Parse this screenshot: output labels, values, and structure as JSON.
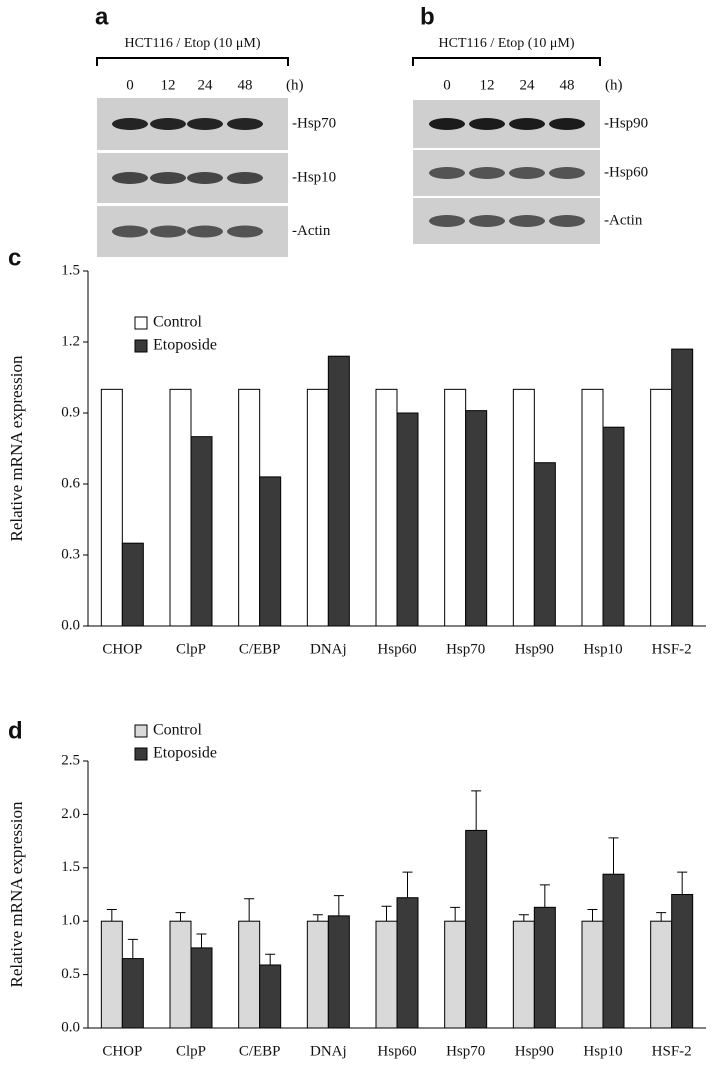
{
  "blots": [
    {
      "letter": "a",
      "condition": "HCT116 / Etop (10 μM)",
      "timepoints": [
        "0",
        "12",
        "24",
        "48"
      ],
      "unit": "(h)",
      "bands": [
        "-Hsp70",
        "-Hsp10",
        "-Actin"
      ]
    },
    {
      "letter": "b",
      "condition": "HCT116 / Etop (10 μM)",
      "timepoints": [
        "0",
        "12",
        "24",
        "48"
      ],
      "unit": "(h)",
      "bands": [
        "-Hsp90",
        "-Hsp60",
        "-Actin"
      ]
    }
  ],
  "chart_data": [
    {
      "type": "bar",
      "panel": "c",
      "ylabel": "Relative mRNA expression",
      "categories": [
        "CHOP",
        "ClpP",
        "C/EBP",
        "DNAj",
        "Hsp60",
        "Hsp70",
        "Hsp90",
        "Hsp10",
        "HSF-2"
      ],
      "series": [
        {
          "name": "Control",
          "color": "#ffffff",
          "values": [
            1.0,
            1.0,
            1.0,
            1.0,
            1.0,
            1.0,
            1.0,
            1.0,
            1.0
          ]
        },
        {
          "name": "Etoposide",
          "color": "#3a3a3a",
          "values": [
            0.35,
            0.8,
            0.63,
            1.14,
            0.9,
            0.91,
            0.69,
            0.84,
            1.17
          ]
        }
      ],
      "ylim": [
        0,
        1.5
      ],
      "yticks": [
        {
          "value": 0,
          "label": "0.0"
        },
        0.3,
        0.6,
        0.9,
        1.2,
        1.5
      ],
      "legend": "upper left"
    },
    {
      "type": "bar",
      "panel": "d",
      "ylabel": "Relative mRNA expression",
      "categories": [
        "CHOP",
        "ClpP",
        "C/EBP",
        "DNAj",
        "Hsp60",
        "Hsp70",
        "Hsp90",
        "Hsp10",
        "HSF-2"
      ],
      "series": [
        {
          "name": "Control",
          "color": "#d9d9d9",
          "values": [
            1.0,
            1.0,
            1.0,
            1.0,
            1.0,
            1.0,
            1.0,
            1.0,
            1.0
          ],
          "errors": [
            0.11,
            0.08,
            0.21,
            0.06,
            0.14,
            0.13,
            0.06,
            0.11,
            0.08
          ]
        },
        {
          "name": "Etoposide",
          "color": "#3a3a3a",
          "values": [
            0.65,
            0.75,
            0.59,
            1.05,
            1.22,
            1.85,
            1.13,
            1.44,
            1.25
          ],
          "errors": [
            0.18,
            0.13,
            0.1,
            0.19,
            0.24,
            0.37,
            0.21,
            0.34,
            0.21
          ]
        }
      ],
      "ylim": [
        0,
        2.5
      ],
      "yticks": [
        {
          "value": 0,
          "label": "0.0"
        },
        0.5,
        {
          "value": 1,
          "label": "1.0"
        },
        1.5,
        {
          "value": 2,
          "label": "2.0"
        },
        2.5
      ],
      "legend": "upper left"
    }
  ]
}
